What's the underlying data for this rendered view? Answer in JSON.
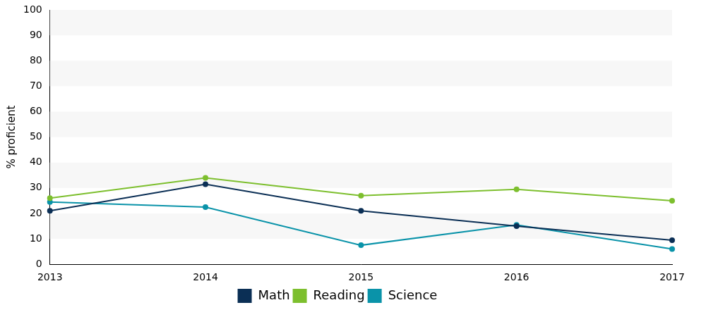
{
  "chart_data": {
    "type": "line",
    "y_label": "% proficient",
    "categories": [
      "2013",
      "2014",
      "2015",
      "2016",
      "2017"
    ],
    "series": [
      {
        "name": "Math",
        "color": "#0b2f55",
        "values": [
          21,
          31.5,
          21,
          15,
          9.5
        ]
      },
      {
        "name": "Reading",
        "color": "#7dbf2e",
        "values": [
          26,
          34,
          27,
          29.5,
          25
        ]
      },
      {
        "name": "Science",
        "color": "#0a93a9",
        "values": [
          24.5,
          22.5,
          7.5,
          15.5,
          6
        ]
      }
    ],
    "ylim": [
      0,
      100
    ],
    "yticks": [
      0,
      10,
      20,
      30,
      40,
      50,
      60,
      70,
      80,
      90,
      100
    ],
    "grid": true,
    "legend": "bottom",
    "marker": "circle"
  }
}
